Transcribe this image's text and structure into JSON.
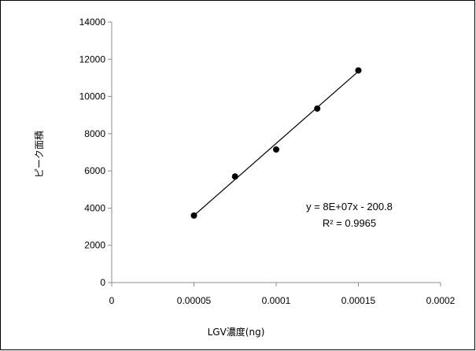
{
  "chart_data": {
    "type": "scatter",
    "title": "",
    "xlabel": "LGV濃度(ng)",
    "ylabel": "ピーク面積",
    "xlim": [
      0,
      0.0002
    ],
    "ylim": [
      0,
      14000
    ],
    "x_ticks": [
      0,
      5e-05,
      0.0001,
      0.00015,
      0.0002
    ],
    "x_tick_labels": [
      "0",
      "0.00005",
      "0.0001",
      "0.00015",
      "0.0002"
    ],
    "y_ticks": [
      0,
      2000,
      4000,
      6000,
      8000,
      10000,
      12000,
      14000
    ],
    "y_tick_labels": [
      "0",
      "2000",
      "4000",
      "6000",
      "8000",
      "10000",
      "12000",
      "14000"
    ],
    "grid": false,
    "legend": "none",
    "marker_color": "#000000",
    "series": [
      {
        "x": [
          5e-05,
          7.5e-05,
          0.0001,
          0.000125,
          0.00015
        ],
        "y": [
          3600,
          5700,
          7150,
          9350,
          11400
        ]
      }
    ],
    "trendline": {
      "type": "linear",
      "x_range": [
        5e-05,
        0.00015
      ],
      "y_range": [
        3600,
        11350
      ],
      "equation": "y = 8E+07x - 200.8",
      "r_squared": "R² = 0.9965"
    }
  }
}
